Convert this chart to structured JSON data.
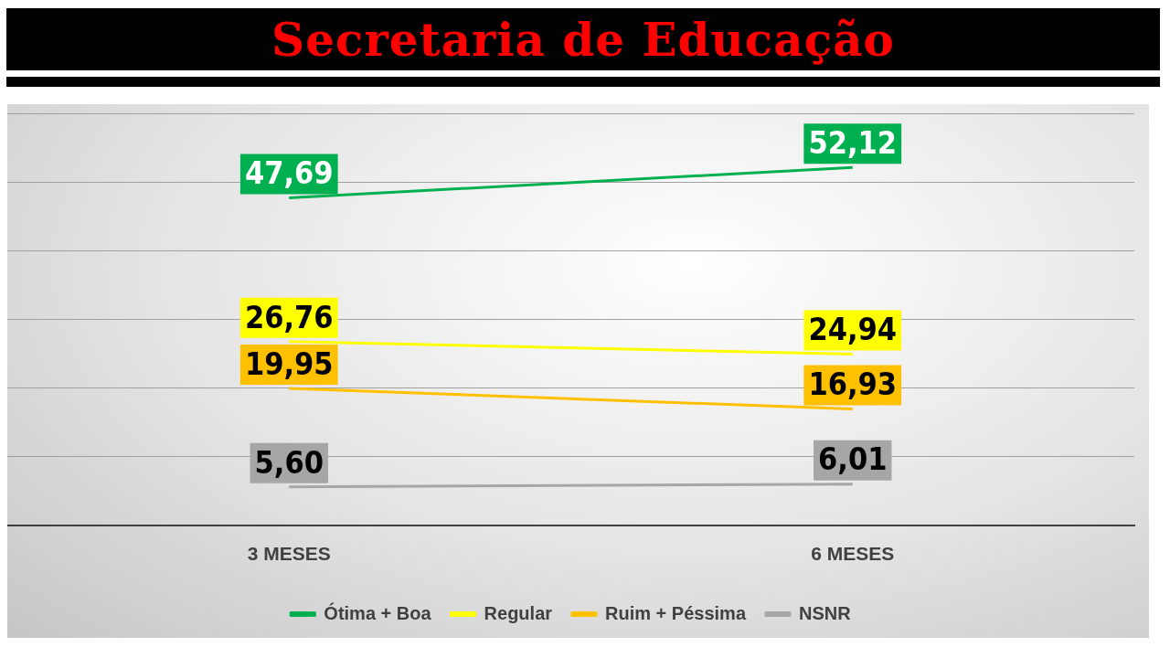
{
  "chart_data": {
    "type": "line",
    "title": "Secretaria de Educação",
    "categories": [
      "3 MESES",
      "6 MESES"
    ],
    "series": [
      {
        "name": "Ótima + Boa",
        "color": "#00b050",
        "values": [
          47.69,
          52.12
        ],
        "value_labels": [
          "47,69",
          "52,12"
        ]
      },
      {
        "name": "Regular",
        "color": "#ffff00",
        "values": [
          26.76,
          24.94
        ],
        "value_labels": [
          "26,76",
          "24,94"
        ]
      },
      {
        "name": "Ruim + Péssima",
        "color": "#ffc000",
        "values": [
          19.95,
          16.93
        ],
        "value_labels": [
          "19,95",
          "16,93"
        ]
      },
      {
        "name": "NSNR",
        "color": "#a6a6a6",
        "values": [
          5.6,
          6.01
        ],
        "value_labels": [
          "5,60",
          "6,01"
        ]
      }
    ],
    "grid": "y",
    "tick_labels": "x",
    "legend": "bottom",
    "line_style": "solid"
  }
}
